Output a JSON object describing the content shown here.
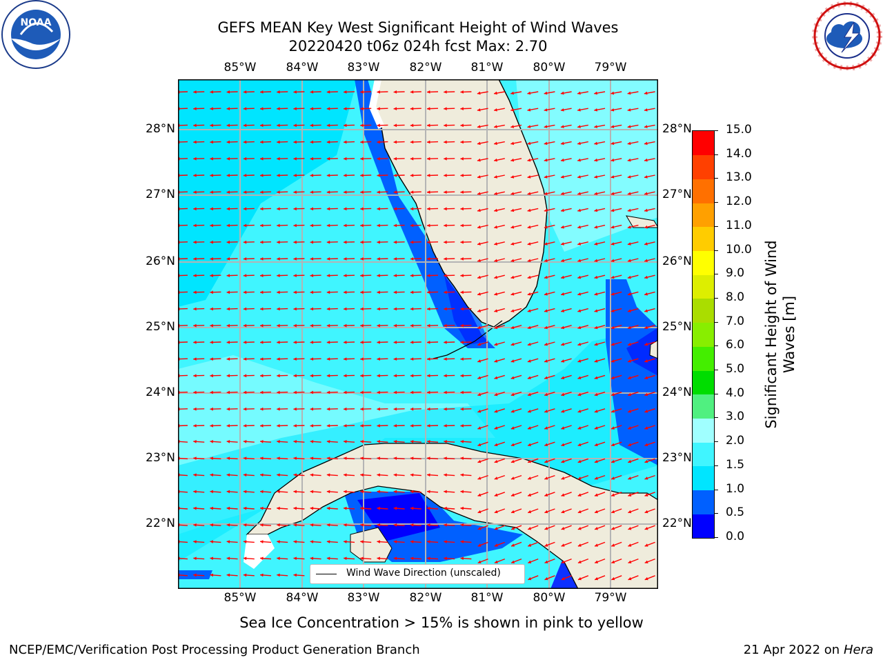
{
  "title": {
    "line1": "GEFS MEAN Key West Significant Height of Wind Waves",
    "line2": "20220420 t06z 024h fcst   Max: 2.70"
  },
  "axes": {
    "lon_labels": [
      "85°W",
      "84°W",
      "83°W",
      "82°W",
      "81°W",
      "80°W",
      "79°W"
    ],
    "lat_labels": [
      "28°N",
      "27°N",
      "26°N",
      "25°N",
      "24°N",
      "23°N",
      "22°N"
    ]
  },
  "legend": {
    "label": "Wind Wave Direction (unscaled)"
  },
  "colorbar": {
    "label_line1": "Significant Height of Wind",
    "label_line2": "Waves [m]",
    "ticks": [
      "0.0",
      "0.5",
      "1.0",
      "1.5",
      "2.0",
      "3.0",
      "4.0",
      "5.0",
      "6.0",
      "7.0",
      "8.0",
      "9.0",
      "10.0",
      "11.0",
      "12.0",
      "13.0",
      "14.0",
      "15.0"
    ],
    "colors": [
      "#0000ff",
      "#0060ff",
      "#00e5ff",
      "#40f5ff",
      "#a0ffff",
      "#50f080",
      "#00dd00",
      "#44ee00",
      "#88ee00",
      "#aadd00",
      "#ddee00",
      "#ffff00",
      "#ffcc00",
      "#ffa000",
      "#ff7000",
      "#ff4000",
      "#ff0000"
    ]
  },
  "notes": {
    "sea_ice": "Sea Ice Concentration > 15% is shown in pink to yellow",
    "producer": "NCEP/EMC/Verification Post Processing Product Generation Branch",
    "date": "21 Apr 2022 on",
    "machine": "Hera"
  },
  "logos": {
    "left": "NOAA",
    "right": "NATIONAL WEATHER SERVICE"
  },
  "map_colors": {
    "land": "#efecdc",
    "sea_base": "#40f5ff",
    "arrow": "#ff0000"
  }
}
